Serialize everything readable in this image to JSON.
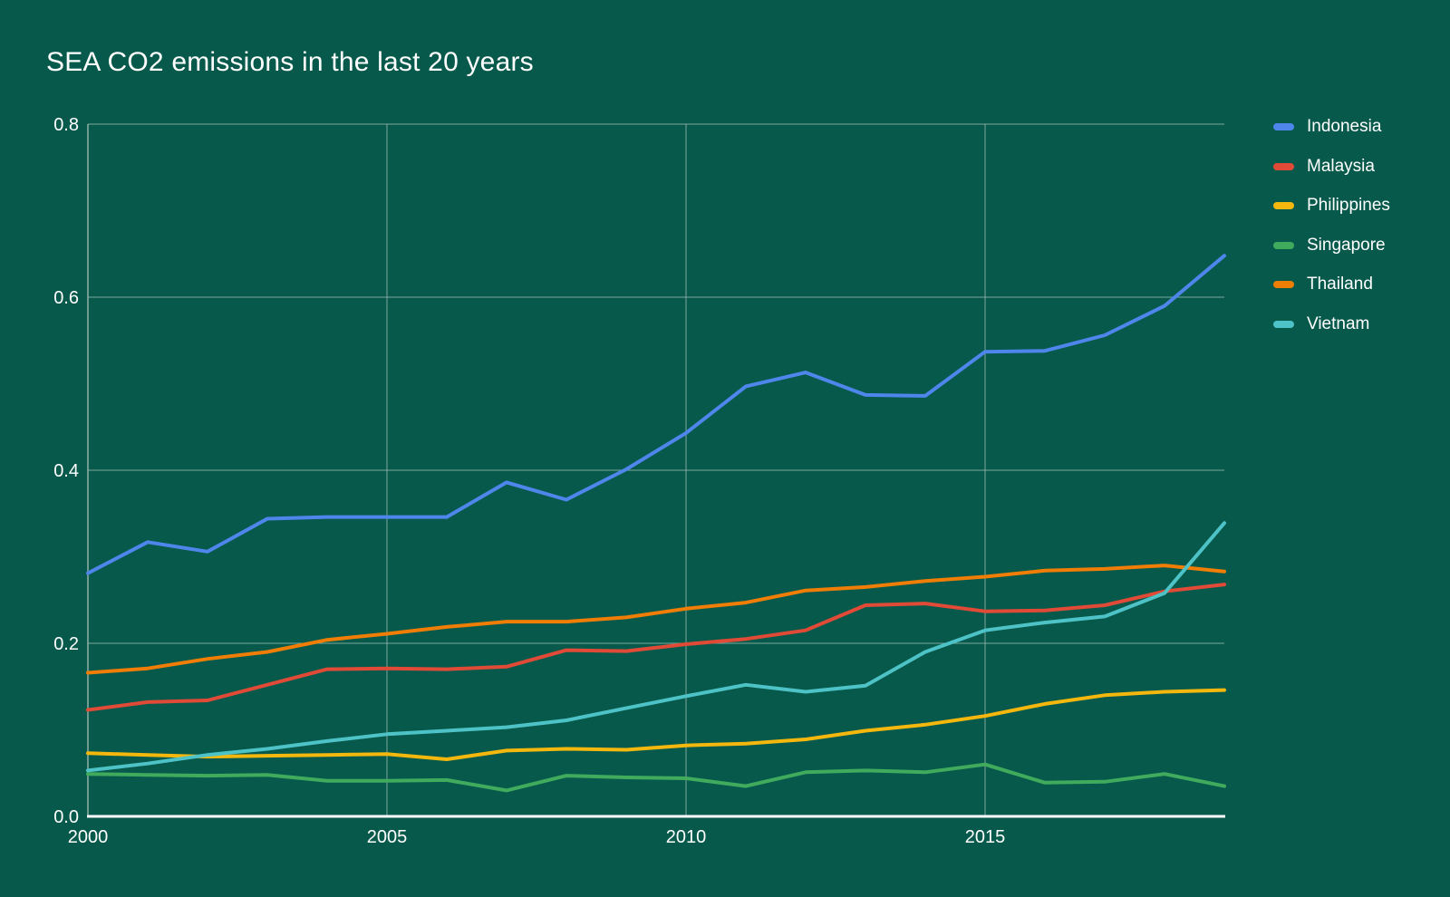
{
  "title": "SEA CO2 emissions in the last 20 years",
  "theme": {
    "background_color": "#075a4b",
    "text_color": "#ffffff",
    "gridline_color": "#a8beb8",
    "axis_line_color": "#ffffff"
  },
  "legend": {
    "position": "right",
    "items": [
      "Indonesia",
      "Malaysia",
      "Philippines",
      "Singapore",
      "Thailand",
      "Vietnam"
    ]
  },
  "chart_data": {
    "type": "line",
    "title": "SEA CO2 emissions in the last 20 years",
    "xlabel": "",
    "ylabel": "",
    "grid": true,
    "legend_position": "right",
    "xlim": [
      2000,
      2019
    ],
    "ylim": [
      0,
      0.8
    ],
    "x_ticks": [
      {
        "value": 2000,
        "label": "2000"
      },
      {
        "value": 2005,
        "label": "2005"
      },
      {
        "value": 2010,
        "label": "2010"
      },
      {
        "value": 2015,
        "label": "2015"
      }
    ],
    "y_ticks": [
      {
        "value": 0.0,
        "label": "0.0"
      },
      {
        "value": 0.2,
        "label": "0.2"
      },
      {
        "value": 0.4,
        "label": "0.4"
      },
      {
        "value": 0.6,
        "label": "0.6"
      },
      {
        "value": 0.8,
        "label": "0.8"
      }
    ],
    "x": [
      2000,
      2001,
      2002,
      2003,
      2004,
      2005,
      2006,
      2007,
      2008,
      2009,
      2010,
      2011,
      2012,
      2013,
      2014,
      2015,
      2016,
      2017,
      2018,
      2019
    ],
    "series": [
      {
        "name": "Indonesia",
        "color": "#4e86ec",
        "values": [
          0.281,
          0.317,
          0.306,
          0.344,
          0.346,
          0.346,
          0.346,
          0.386,
          0.366,
          0.401,
          0.443,
          0.497,
          0.513,
          0.487,
          0.486,
          0.537,
          0.538,
          0.556,
          0.59,
          0.648
        ]
      },
      {
        "name": "Malaysia",
        "color": "#e04a36",
        "values": [
          0.123,
          0.132,
          0.134,
          0.152,
          0.17,
          0.171,
          0.17,
          0.173,
          0.192,
          0.191,
          0.199,
          0.205,
          0.215,
          0.244,
          0.246,
          0.237,
          0.238,
          0.244,
          0.26,
          0.268
        ]
      },
      {
        "name": "Philippines",
        "color": "#f4b70d",
        "values": [
          0.073,
          0.071,
          0.069,
          0.07,
          0.071,
          0.072,
          0.066,
          0.076,
          0.078,
          0.077,
          0.082,
          0.084,
          0.089,
          0.099,
          0.106,
          0.116,
          0.13,
          0.14,
          0.144,
          0.146
        ]
      },
      {
        "name": "Singapore",
        "color": "#40ab5c",
        "values": [
          0.049,
          0.048,
          0.047,
          0.048,
          0.041,
          0.041,
          0.042,
          0.03,
          0.047,
          0.045,
          0.044,
          0.035,
          0.051,
          0.053,
          0.051,
          0.06,
          0.039,
          0.04,
          0.049,
          0.035
        ]
      },
      {
        "name": "Thailand",
        "color": "#f07d05",
        "values": [
          0.166,
          0.171,
          0.182,
          0.19,
          0.204,
          0.211,
          0.219,
          0.225,
          0.225,
          0.23,
          0.24,
          0.247,
          0.261,
          0.265,
          0.272,
          0.277,
          0.284,
          0.286,
          0.29,
          0.283
        ]
      },
      {
        "name": "Vietnam",
        "color": "#4ec3c7",
        "values": [
          0.053,
          0.061,
          0.071,
          0.078,
          0.087,
          0.095,
          0.099,
          0.103,
          0.111,
          0.125,
          0.139,
          0.152,
          0.144,
          0.151,
          0.19,
          0.215,
          0.224,
          0.231,
          0.258,
          0.339
        ]
      }
    ]
  }
}
